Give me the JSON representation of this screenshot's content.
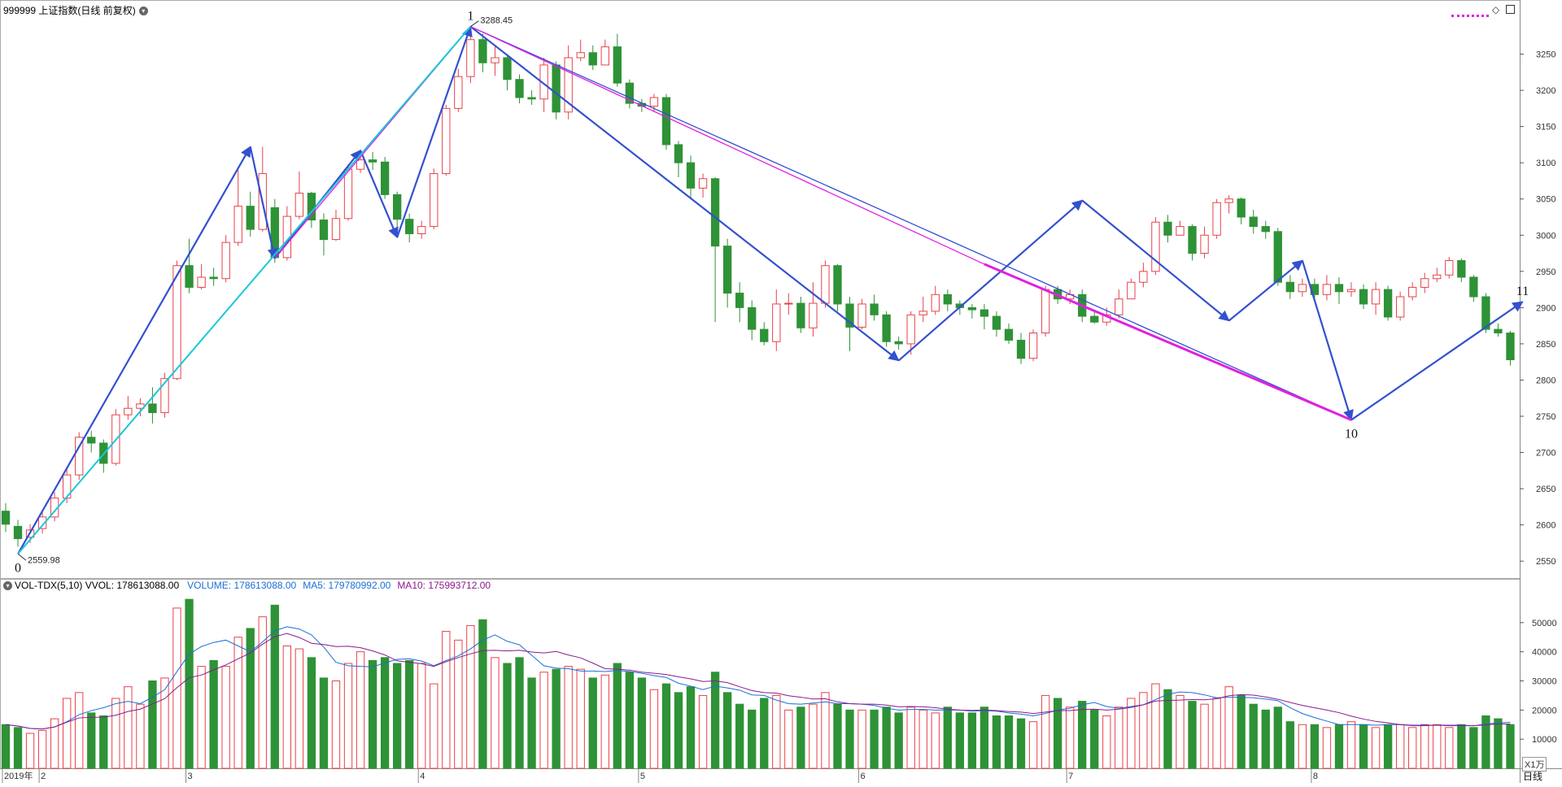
{
  "header": {
    "title": "999999 上证指数(日线 前复权)",
    "menu_icon": "chevron-down-icon"
  },
  "volume_header": {
    "name": "VOL-TDX(5,10) VVOL: 178613088.00",
    "volume": "VOLUME: 178613088.00",
    "ma5": "MA5: 179780992.00",
    "ma10": "MA10: 175993712.00"
  },
  "toolbar_icons": [
    "diamond-icon",
    "panel-icon"
  ],
  "period_label": "日线",
  "unit_label": "X1万",
  "colors": {
    "up": "#e8424a",
    "down": "#2e9236",
    "wave_blue": "#3350d0",
    "wave_magenta": "#e020e0",
    "wave_cyan": "#18c8d8",
    "ma5": "#1b6fd6",
    "ma10": "#8b1a8b",
    "grid": "#cfcfcf"
  },
  "chart_data": {
    "type": "candlestick",
    "price_axis": {
      "ylim": [
        2530,
        3300
      ],
      "ticks": [
        2550,
        2600,
        2650,
        2700,
        2750,
        2800,
        2850,
        2900,
        2950,
        3000,
        3050,
        3100,
        3150,
        3200,
        3250
      ]
    },
    "volume_axis": {
      "ylim": [
        0,
        60000
      ],
      "ticks": [
        10000,
        20000,
        30000,
        40000,
        50000
      ]
    },
    "x_labels": [
      {
        "i": 0,
        "label": "2019年"
      },
      {
        "i": 3,
        "label": "2"
      },
      {
        "i": 15,
        "label": "3"
      },
      {
        "i": 34,
        "label": "4"
      },
      {
        "i": 52,
        "label": "5"
      },
      {
        "i": 70,
        "label": "6"
      },
      {
        "i": 87,
        "label": "7"
      },
      {
        "i": 107,
        "label": "8"
      }
    ],
    "price_labels": [
      {
        "i": 1,
        "value": "2559.98",
        "price": 2560,
        "pos": "below"
      },
      {
        "i": 38,
        "value": "3288.45",
        "price": 3288,
        "pos": "above"
      }
    ],
    "wave_labels": [
      {
        "text": "0",
        "i": 1,
        "price": 2560,
        "pos": "below"
      },
      {
        "text": "1",
        "i": 38,
        "price": 3288,
        "pos": "above"
      },
      {
        "text": "10",
        "i": 110,
        "price": 2745,
        "pos": "below"
      },
      {
        "text": "11",
        "i": 124,
        "price": 2908,
        "pos": "above"
      }
    ],
    "wave_lines": [
      {
        "color": "blue",
        "width": 2.2,
        "points": [
          [
            1,
            2560
          ],
          [
            20,
            3122
          ],
          [
            22,
            2968
          ],
          [
            29,
            3117
          ],
          [
            32,
            2997
          ],
          [
            38,
            3288
          ],
          [
            73,
            2827
          ],
          [
            88,
            3048
          ],
          [
            100,
            2882
          ],
          [
            106,
            2965
          ],
          [
            110,
            2745
          ],
          [
            124,
            2908
          ]
        ]
      },
      {
        "color": "blue",
        "width": 1.3,
        "points": [
          [
            38,
            3288
          ],
          [
            110,
            2745
          ]
        ]
      },
      {
        "color": "magenta",
        "width": 1.3,
        "points": [
          [
            22,
            2968
          ],
          [
            38,
            3288
          ]
        ]
      },
      {
        "color": "magenta",
        "width": 1.3,
        "points": [
          [
            38,
            3288
          ],
          [
            80,
            2960
          ]
        ]
      },
      {
        "color": "magenta",
        "width": 3,
        "points": [
          [
            80,
            2960
          ],
          [
            110,
            2745
          ]
        ]
      },
      {
        "color": "cyan",
        "width": 2,
        "points": [
          [
            1,
            2560
          ],
          [
            38,
            3288
          ]
        ]
      }
    ],
    "candles": [
      [
        2619,
        2601,
        2630,
        2590,
        15000
      ],
      [
        2598,
        2581,
        2607,
        2570,
        14000
      ],
      [
        2583,
        2593,
        2601,
        2575,
        12000
      ],
      [
        2595,
        2611,
        2618,
        2588,
        13000
      ],
      [
        2611,
        2637,
        2645,
        2605,
        17000
      ],
      [
        2637,
        2669,
        2680,
        2630,
        24000
      ],
      [
        2669,
        2721,
        2728,
        2662,
        26000
      ],
      [
        2721,
        2713,
        2730,
        2700,
        19000
      ],
      [
        2713,
        2685,
        2718,
        2672,
        18000
      ],
      [
        2685,
        2752,
        2760,
        2682,
        24000
      ],
      [
        2752,
        2761,
        2778,
        2745,
        28000
      ],
      [
        2761,
        2767,
        2775,
        2750,
        22000
      ],
      [
        2767,
        2755,
        2790,
        2740,
        30000
      ],
      [
        2755,
        2802,
        2810,
        2748,
        31000
      ],
      [
        2802,
        2958,
        2965,
        2800,
        55000
      ],
      [
        2958,
        2928,
        2995,
        2920,
        58000
      ],
      [
        2928,
        2942,
        2960,
        2925,
        35000
      ],
      [
        2942,
        2940,
        2955,
        2930,
        37000
      ],
      [
        2940,
        2990,
        3000,
        2935,
        35000
      ],
      [
        2990,
        3040,
        3090,
        2985,
        45000
      ],
      [
        3040,
        3008,
        3060,
        2998,
        48000
      ],
      [
        3008,
        3085,
        3122,
        3005,
        52000
      ],
      [
        3038,
        2969,
        3050,
        2962,
        56000
      ],
      [
        2969,
        3026,
        3040,
        2965,
        42000
      ],
      [
        3026,
        3058,
        3088,
        3022,
        41000
      ],
      [
        3058,
        3021,
        3060,
        3010,
        38000
      ],
      [
        3021,
        2994,
        3030,
        2972,
        31000
      ],
      [
        2994,
        3023,
        3035,
        2992,
        30000
      ],
      [
        3023,
        3091,
        3098,
        3020,
        36000
      ],
      [
        3091,
        3104,
        3117,
        3086,
        40000
      ],
      [
        3104,
        3101,
        3115,
        3090,
        37000
      ],
      [
        3101,
        3056,
        3108,
        3050,
        38000
      ],
      [
        3056,
        3022,
        3060,
        2997,
        36000
      ],
      [
        3022,
        3002,
        3030,
        2990,
        37000
      ],
      [
        3002,
        3012,
        3020,
        2995,
        36000
      ],
      [
        3012,
        3085,
        3092,
        3008,
        29000
      ],
      [
        3085,
        3175,
        3180,
        3082,
        47000
      ],
      [
        3175,
        3219,
        3230,
        3170,
        44000
      ],
      [
        3219,
        3270,
        3288,
        3210,
        49000
      ],
      [
        3270,
        3238,
        3278,
        3225,
        51000
      ],
      [
        3238,
        3245,
        3260,
        3220,
        38000
      ],
      [
        3245,
        3215,
        3250,
        3200,
        36000
      ],
      [
        3215,
        3190,
        3222,
        3182,
        38000
      ],
      [
        3190,
        3188,
        3200,
        3180,
        31000
      ],
      [
        3188,
        3235,
        3245,
        3170,
        33000
      ],
      [
        3235,
        3170,
        3240,
        3160,
        34000
      ],
      [
        3170,
        3245,
        3262,
        3160,
        35000
      ],
      [
        3245,
        3252,
        3270,
        3240,
        34000
      ],
      [
        3252,
        3235,
        3262,
        3228,
        31000
      ],
      [
        3235,
        3260,
        3270,
        3240,
        32000
      ],
      [
        3260,
        3210,
        3278,
        3205,
        36000
      ],
      [
        3210,
        3182,
        3215,
        3175,
        33000
      ],
      [
        3182,
        3178,
        3188,
        3170,
        31000
      ],
      [
        3178,
        3190,
        3195,
        3170,
        27000
      ],
      [
        3190,
        3125,
        3195,
        3118,
        29000
      ],
      [
        3125,
        3100,
        3130,
        3080,
        26000
      ],
      [
        3100,
        3065,
        3110,
        3050,
        28000
      ],
      [
        3065,
        3078,
        3085,
        3052,
        25000
      ],
      [
        3078,
        2985,
        3080,
        2880,
        33000
      ],
      [
        2985,
        2920,
        2995,
        2900,
        26000
      ],
      [
        2920,
        2900,
        2935,
        2880,
        22000
      ],
      [
        2900,
        2870,
        2910,
        2855,
        20000
      ],
      [
        2870,
        2853,
        2880,
        2848,
        24000
      ],
      [
        2853,
        2905,
        2925,
        2840,
        25000
      ],
      [
        2905,
        2906,
        2920,
        2890,
        20000
      ],
      [
        2906,
        2872,
        2915,
        2865,
        21000
      ],
      [
        2872,
        2906,
        2935,
        2860,
        22000
      ],
      [
        2906,
        2958,
        2965,
        2900,
        26000
      ],
      [
        2958,
        2905,
        2960,
        2895,
        22000
      ],
      [
        2905,
        2873,
        2915,
        2840,
        20000
      ],
      [
        2873,
        2905,
        2912,
        2870,
        20000
      ],
      [
        2905,
        2890,
        2918,
        2882,
        20000
      ],
      [
        2890,
        2853,
        2895,
        2846,
        21000
      ],
      [
        2853,
        2850,
        2860,
        2842,
        19000
      ],
      [
        2850,
        2890,
        2895,
        2835,
        21000
      ],
      [
        2890,
        2895,
        2915,
        2880,
        20000
      ],
      [
        2895,
        2918,
        2930,
        2890,
        19000
      ],
      [
        2918,
        2905,
        2925,
        2895,
        21000
      ],
      [
        2905,
        2900,
        2910,
        2890,
        19000
      ],
      [
        2900,
        2897,
        2905,
        2885,
        19000
      ],
      [
        2897,
        2888,
        2905,
        2870,
        21000
      ],
      [
        2888,
        2870,
        2895,
        2860,
        18000
      ],
      [
        2870,
        2855,
        2878,
        2850,
        18000
      ],
      [
        2855,
        2830,
        2865,
        2822,
        17000
      ],
      [
        2830,
        2865,
        2870,
        2826,
        16000
      ],
      [
        2865,
        2925,
        2930,
        2860,
        25000
      ],
      [
        2925,
        2912,
        2930,
        2905,
        24000
      ],
      [
        2912,
        2918,
        2925,
        2905,
        21000
      ],
      [
        2918,
        2888,
        2925,
        2880,
        23000
      ],
      [
        2888,
        2880,
        2895,
        2878,
        20000
      ],
      [
        2880,
        2890,
        2900,
        2875,
        18000
      ],
      [
        2890,
        2912,
        2925,
        2885,
        21000
      ],
      [
        2912,
        2935,
        2940,
        2915,
        24000
      ],
      [
        2935,
        2950,
        2962,
        2928,
        26000
      ],
      [
        2950,
        3018,
        3025,
        2945,
        29000
      ],
      [
        3018,
        3000,
        3028,
        2990,
        27000
      ],
      [
        3000,
        3012,
        3020,
        3005,
        25000
      ],
      [
        3012,
        2975,
        3015,
        2965,
        23000
      ],
      [
        2975,
        3000,
        3012,
        2968,
        22000
      ],
      [
        3000,
        3045,
        3050,
        2995,
        24000
      ],
      [
        3045,
        3050,
        3055,
        3030,
        28000
      ],
      [
        3050,
        3025,
        3052,
        3015,
        25000
      ],
      [
        3025,
        3012,
        3035,
        3002,
        22000
      ],
      [
        3012,
        3005,
        3020,
        2995,
        20000
      ],
      [
        3005,
        2935,
        3010,
        2930,
        21000
      ],
      [
        2935,
        2922,
        2945,
        2912,
        16000
      ],
      [
        2922,
        2932,
        2940,
        2915,
        15000
      ],
      [
        2932,
        2918,
        2940,
        2910,
        15000
      ],
      [
        2918,
        2932,
        2945,
        2910,
        14000
      ],
      [
        2932,
        2922,
        2942,
        2905,
        15000
      ],
      [
        2922,
        2925,
        2935,
        2915,
        16000
      ],
      [
        2925,
        2905,
        2932,
        2898,
        15000
      ],
      [
        2905,
        2925,
        2935,
        2890,
        14000
      ],
      [
        2925,
        2887,
        2930,
        2882,
        15000
      ],
      [
        2887,
        2915,
        2922,
        2882,
        15000
      ],
      [
        2915,
        2928,
        2935,
        2910,
        14000
      ],
      [
        2928,
        2940,
        2948,
        2920,
        15000
      ],
      [
        2940,
        2945,
        2955,
        2935,
        15000
      ],
      [
        2945,
        2965,
        2970,
        2940,
        14000
      ],
      [
        2965,
        2942,
        2968,
        2935,
        15000
      ],
      [
        2942,
        2915,
        2945,
        2908,
        14000
      ],
      [
        2915,
        2870,
        2920,
        2865,
        18000
      ],
      [
        2870,
        2865,
        2878,
        2860,
        17000
      ],
      [
        2865,
        2828,
        2868,
        2820,
        15000
      ]
    ]
  }
}
